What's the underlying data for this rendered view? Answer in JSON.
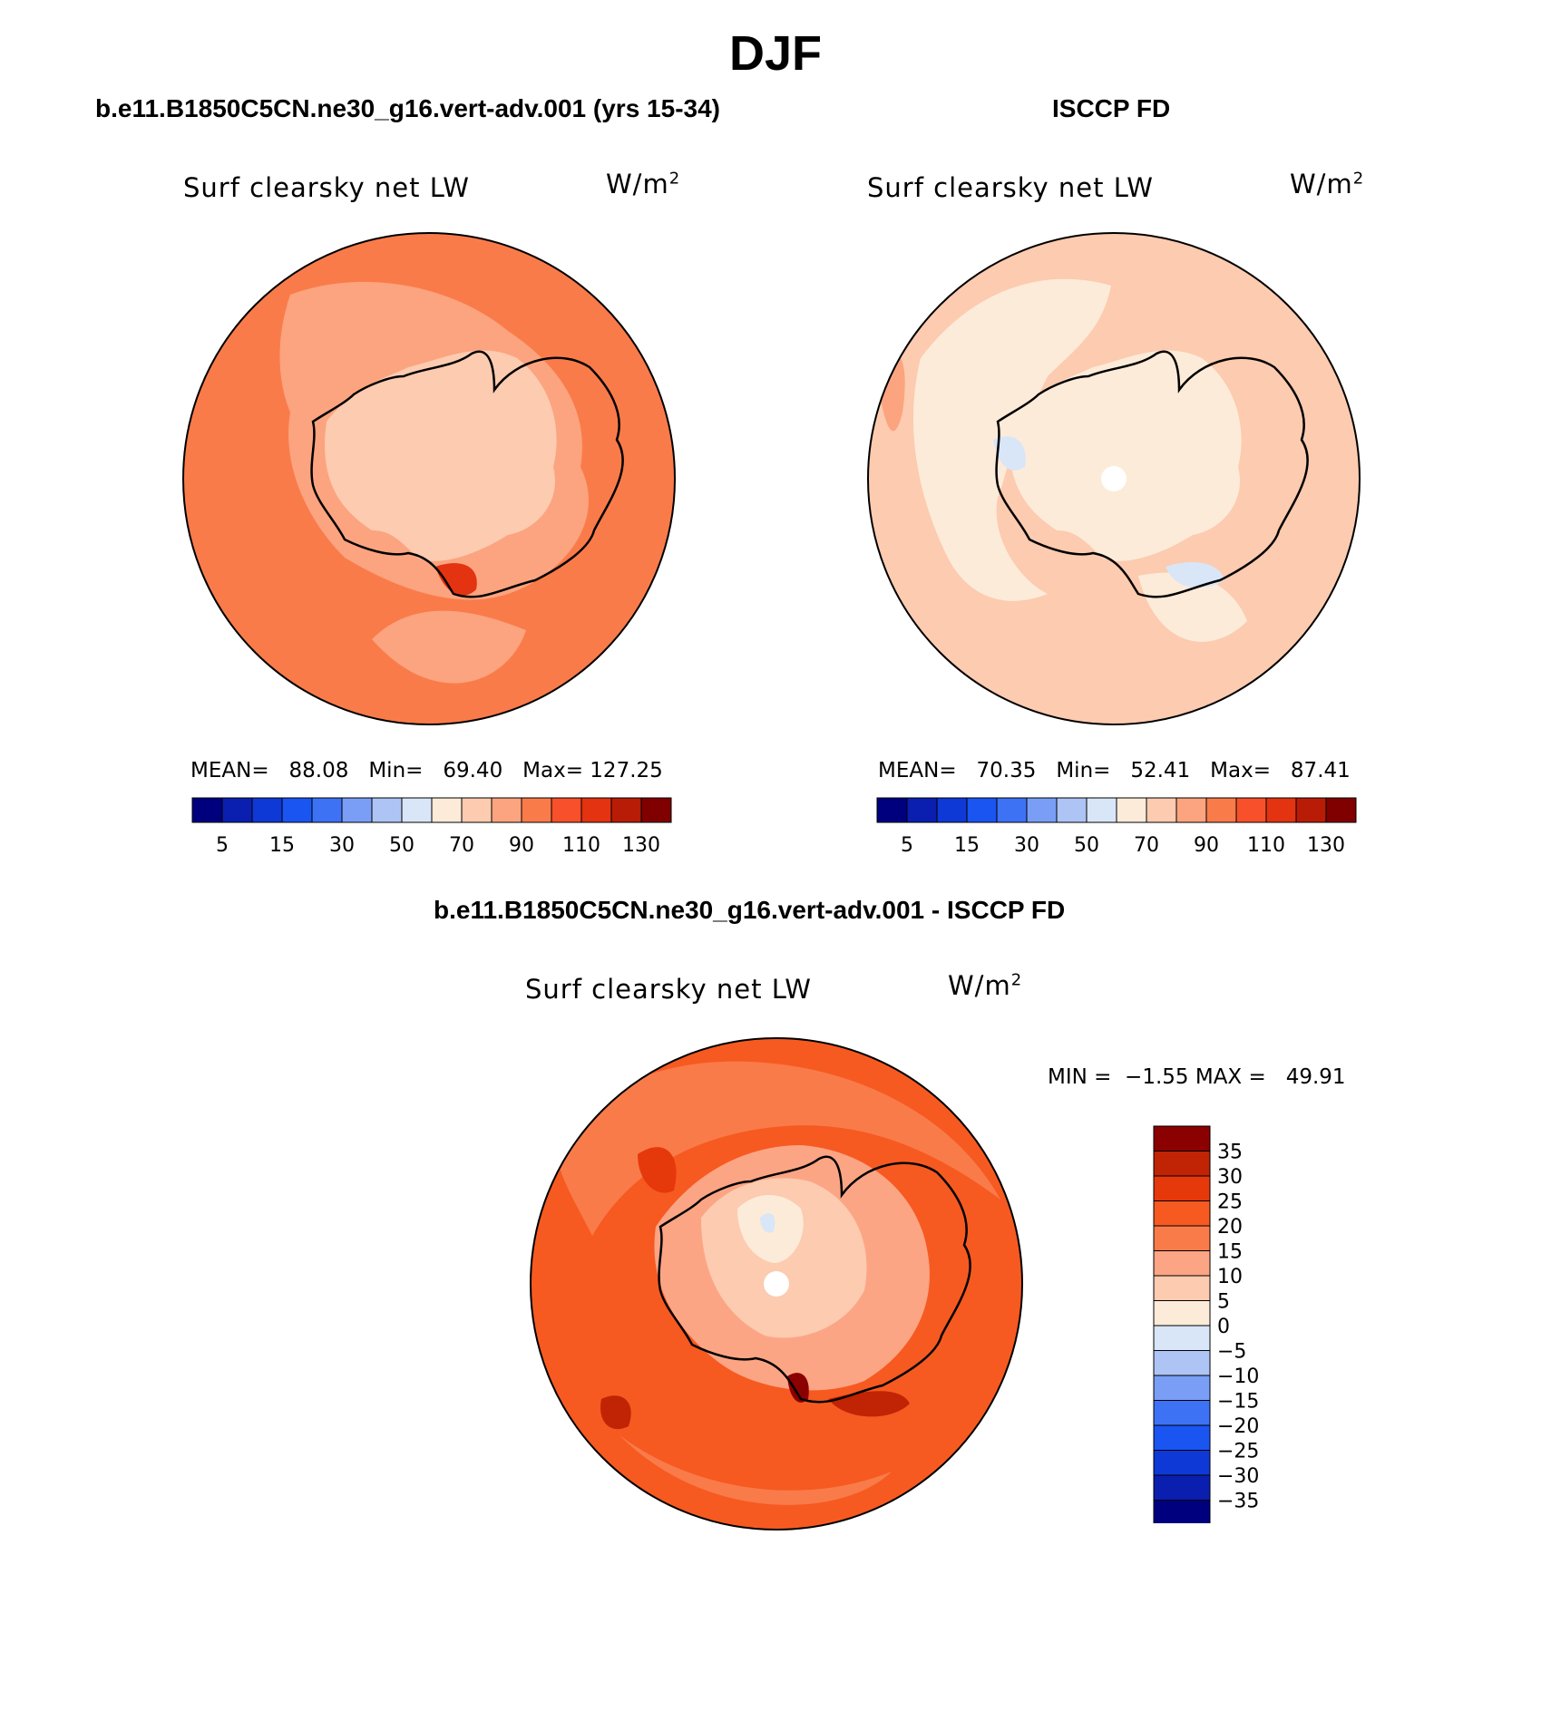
{
  "figure": {
    "title": "DJF",
    "panel_left_title": "b.e11.B1850C5CN.ne30_g16.vert-adv.001 (yrs 15-34)",
    "panel_right_title": "ISCCP FD",
    "panel_diff_title": "b.e11.B1850C5CN.ne30_g16.vert-adv.001 - ISCCP FD"
  },
  "maps": [
    {
      "variable": "Surf clearsky net LW",
      "units": "W/m",
      "units_sup": "2",
      "mean_label": "MEAN=",
      "mean": "88.08",
      "min_label": "Min=",
      "min": "69.40",
      "max_label": "Max=",
      "max": "127.25"
    },
    {
      "variable": "Surf clearsky net LW",
      "units": "W/m",
      "units_sup": "2",
      "mean_label": "MEAN=",
      "mean": "70.35",
      "min_label": "Min=",
      "min": "52.41",
      "max_label": "Max=",
      "max": "87.41"
    },
    {
      "variable": "Surf clearsky net LW",
      "units": "W/m",
      "units_sup": "2",
      "min_label": "MIN =",
      "min": "−1.55",
      "max_label": "MAX =",
      "max": "49.91"
    }
  ],
  "colorbar_abs": {
    "colors": [
      "#00007f",
      "#0a1fb0",
      "#0f39d6",
      "#1a55f2",
      "#3d72f5",
      "#7a9ef5",
      "#adc4f5",
      "#d8e6f7",
      "#fdebd9",
      "#fccbb0",
      "#fba47f",
      "#fa7b4a",
      "#f7502a",
      "#e33310",
      "#b81c06",
      "#800000"
    ],
    "labels": [
      "5",
      "15",
      "30",
      "50",
      "70",
      "90",
      "110",
      "130"
    ],
    "label_boundary_index": [
      1,
      3,
      5,
      7,
      9,
      11,
      13,
      15
    ]
  },
  "colorbar_diff": {
    "colors": [
      "#8b0000",
      "#c02404",
      "#e6390b",
      "#f65a21",
      "#fa7b4a",
      "#fca585",
      "#fccbb0",
      "#fdebd9",
      "#d8e6f7",
      "#adc4f5",
      "#7a9ef5",
      "#3d72f5",
      "#1a55f2",
      "#0f39d6",
      "#0a1fb0",
      "#00007f"
    ],
    "labels": [
      "35",
      "30",
      "25",
      "20",
      "15",
      "10",
      "5",
      "0",
      "−5",
      "−10",
      "−15",
      "−20",
      "−25",
      "−30",
      "−35"
    ]
  }
}
